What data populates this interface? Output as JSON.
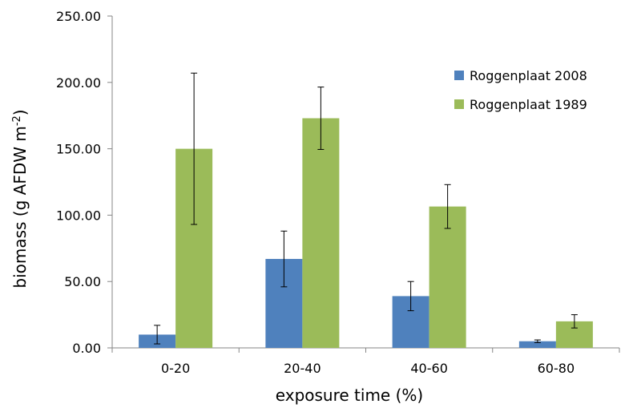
{
  "chart_data": {
    "type": "bar",
    "categories": [
      "0-20",
      "20-40",
      "40-60",
      "60-80"
    ],
    "series": [
      {
        "name": "Roggenplaat 2008",
        "color": "#4f81bd",
        "values": [
          10.0,
          67.0,
          39.0,
          5.0
        ],
        "error": [
          7.0,
          21.0,
          11.0,
          1.0
        ]
      },
      {
        "name": "Roggenplaat 1989",
        "color": "#9bbb59",
        "values": [
          150.0,
          173.0,
          106.5,
          20.0
        ],
        "error": [
          57.0,
          23.5,
          16.5,
          5.0
        ]
      }
    ],
    "xlabel": "exposure time (%)",
    "ylabel": {
      "main": "biomass (g AFDW m",
      "superscript": "-2",
      "close": ")"
    },
    "ylim": [
      0,
      250
    ],
    "yticks": [
      "0.00",
      "50.00",
      "100.00",
      "150.00",
      "200.00",
      "250.00"
    ],
    "ytick_values": [
      0,
      50,
      100,
      150,
      200,
      250
    ],
    "grid": false,
    "legend_position": "top-right"
  }
}
